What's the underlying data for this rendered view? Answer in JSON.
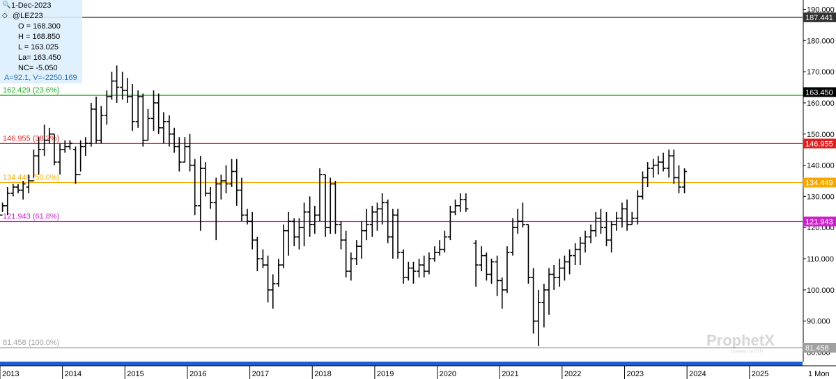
{
  "chart_data": {
    "type": "bar",
    "subtype": "ohlc-monthly",
    "instrument": "@LEZ23",
    "info_panel": {
      "date": "1-Dec-2023",
      "symbol": "@LEZ23",
      "open": "O = 168.300",
      "high": "H = 168.850",
      "low": "L = 163.025",
      "last": "La= 163.450",
      "net_change": "NC= -5.050",
      "extra": "A=92.1, V=-2250.169"
    },
    "y_axis": {
      "range": [
        77.0,
        193.0
      ],
      "ticks": [
        {
          "value": 190,
          "label": "190.000"
        },
        {
          "value": 180,
          "label": "180.000"
        },
        {
          "value": 170,
          "label": "170.000"
        },
        {
          "value": 160,
          "label": "160.000"
        },
        {
          "value": 150,
          "label": "150.000"
        },
        {
          "value": 140,
          "label": "140.000"
        },
        {
          "value": 130,
          "label": "130.000"
        },
        {
          "value": 120,
          "label": "120.000"
        },
        {
          "value": 110,
          "label": "110.000"
        },
        {
          "value": 100,
          "label": "100.000"
        },
        {
          "value": 90,
          "label": "90.000"
        },
        {
          "value": 80,
          "label": "80.000"
        }
      ]
    },
    "x_axis": {
      "range": [
        2013.0,
        2025.85
      ],
      "ticks": [
        {
          "value": 2013.0,
          "label": "2013"
        },
        {
          "value": 2014.0,
          "label": "2014"
        },
        {
          "value": 2015.0,
          "label": "2015"
        },
        {
          "value": 2016.0,
          "label": "2016"
        },
        {
          "value": 2017.0,
          "label": "2017"
        },
        {
          "value": 2018.0,
          "label": "2018"
        },
        {
          "value": 2019.0,
          "label": "2019"
        },
        {
          "value": 2020.0,
          "label": "2020"
        },
        {
          "value": 2021.0,
          "label": "2021"
        },
        {
          "value": 2022.0,
          "label": "2022"
        },
        {
          "value": 2023.0,
          "label": "2023"
        },
        {
          "value": 2024.0,
          "label": "2024"
        },
        {
          "value": 2025.0,
          "label": "2025"
        }
      ],
      "period_label": "1 Mon"
    },
    "levels": [
      {
        "value": 187.441,
        "left_label": "187.4",
        "right_label": "187.441",
        "color": "#333333",
        "label_color": "#a8a8a8",
        "badge_bg": "#333333",
        "badge_fg": "#ffffff"
      },
      {
        "value": 162.429,
        "left_label": "162.429 (23.6%)",
        "right_label": "",
        "color": "#1fae1f",
        "label_color": "#1fae1f",
        "badge_bg": "",
        "badge_fg": ""
      },
      {
        "value": 146.955,
        "left_label": "146.955 (38.2%)",
        "right_label": "146.955",
        "color": "#e02020",
        "label_color": "#e02020",
        "badge_bg": "#e02020",
        "badge_fg": "#ffffff"
      },
      {
        "value": 134.449,
        "left_label": "134.449 (50.0%)",
        "right_label": "134.449",
        "color": "#f5a800",
        "label_color": "#f5a800",
        "badge_bg": "#f5a800",
        "badge_fg": "#ffffff"
      },
      {
        "value": 121.943,
        "left_label": "121.943 (61.8%)",
        "right_label": "121.943",
        "color": "#cc22cc",
        "label_color": "#cc22cc",
        "badge_bg": "#cc22cc",
        "badge_fg": "#ffffff"
      },
      {
        "value": 81.458,
        "left_label": "81.458 (100.0%)",
        "right_label": "81.458",
        "color": "#a0a0a0",
        "label_color": "#a0a0a0",
        "badge_bg": "#a0a0a0",
        "badge_fg": "#ffffff"
      }
    ],
    "last_price": {
      "value": 163.45,
      "label": "163.450",
      "badge_bg": "#000000",
      "badge_fg": "#ffffff"
    },
    "watermark": {
      "brand": "ProphetX",
      "tagline": "powered by DTN"
    },
    "bars": [
      {
        "t": 2013.04,
        "o": 124,
        "h": 128,
        "l": 125,
        "c": 127
      },
      {
        "t": 2013.12,
        "o": 127,
        "h": 133,
        "l": 124,
        "c": 131
      },
      {
        "t": 2013.21,
        "o": 131,
        "h": 134,
        "l": 130,
        "c": 133
      },
      {
        "t": 2013.29,
        "o": 133,
        "h": 134,
        "l": 131,
        "c": 132
      },
      {
        "t": 2013.37,
        "o": 132,
        "h": 135,
        "l": 129,
        "c": 134
      },
      {
        "t": 2013.46,
        "o": 133,
        "h": 137,
        "l": 131,
        "c": 135
      },
      {
        "t": 2013.54,
        "o": 135,
        "h": 145,
        "l": 136,
        "c": 143
      },
      {
        "t": 2013.62,
        "o": 143,
        "h": 149,
        "l": 137,
        "c": 145
      },
      {
        "t": 2013.71,
        "o": 145,
        "h": 153,
        "l": 143,
        "c": 148
      },
      {
        "t": 2013.79,
        "o": 148,
        "h": 152,
        "l": 147,
        "c": 150
      },
      {
        "t": 2013.87,
        "o": 150,
        "h": 150,
        "l": 140,
        "c": 141
      },
      {
        "t": 2013.96,
        "o": 141,
        "h": 147,
        "l": 137,
        "c": 145
      },
      {
        "t": 2014.04,
        "o": 145,
        "h": 148,
        "l": 144,
        "c": 146
      },
      {
        "t": 2014.12,
        "o": 146,
        "h": 148,
        "l": 145,
        "c": 147
      },
      {
        "t": 2014.21,
        "o": 145,
        "h": 146,
        "l": 134,
        "c": 137
      },
      {
        "t": 2014.29,
        "o": 137,
        "h": 148,
        "l": 138,
        "c": 146
      },
      {
        "t": 2014.37,
        "o": 146,
        "h": 149,
        "l": 143,
        "c": 147
      },
      {
        "t": 2014.46,
        "o": 147,
        "h": 160,
        "l": 146,
        "c": 158
      },
      {
        "t": 2014.54,
        "o": 158,
        "h": 162,
        "l": 147,
        "c": 148
      },
      {
        "t": 2014.62,
        "o": 148,
        "h": 159,
        "l": 147,
        "c": 156
      },
      {
        "t": 2014.71,
        "o": 156,
        "h": 164,
        "l": 153,
        "c": 162
      },
      {
        "t": 2014.79,
        "o": 162,
        "h": 170,
        "l": 161,
        "c": 167
      },
      {
        "t": 2014.87,
        "o": 167,
        "h": 172,
        "l": 160,
        "c": 165
      },
      {
        "t": 2014.96,
        "o": 165,
        "h": 170,
        "l": 161,
        "c": 164
      },
      {
        "t": 2015.04,
        "o": 164,
        "h": 168,
        "l": 160,
        "c": 162
      },
      {
        "t": 2015.12,
        "o": 162,
        "h": 166,
        "l": 151,
        "c": 154
      },
      {
        "t": 2015.21,
        "o": 154,
        "h": 164,
        "l": 152,
        "c": 162
      },
      {
        "t": 2015.29,
        "o": 162,
        "h": 163,
        "l": 146,
        "c": 148
      },
      {
        "t": 2015.37,
        "o": 148,
        "h": 158,
        "l": 148,
        "c": 155
      },
      {
        "t": 2015.46,
        "o": 155,
        "h": 164,
        "l": 151,
        "c": 160
      },
      {
        "t": 2015.54,
        "o": 160,
        "h": 163,
        "l": 150,
        "c": 152
      },
      {
        "t": 2015.62,
        "o": 152,
        "h": 157,
        "l": 147,
        "c": 154
      },
      {
        "t": 2015.71,
        "o": 154,
        "h": 156,
        "l": 146,
        "c": 150
      },
      {
        "t": 2015.79,
        "o": 150,
        "h": 152,
        "l": 144,
        "c": 146
      },
      {
        "t": 2015.87,
        "o": 146,
        "h": 149,
        "l": 138,
        "c": 141
      },
      {
        "t": 2015.96,
        "o": 141,
        "h": 149,
        "l": 141,
        "c": 146
      },
      {
        "t": 2016.04,
        "o": 146,
        "h": 150,
        "l": 138,
        "c": 140
      },
      {
        "t": 2016.12,
        "o": 140,
        "h": 142,
        "l": 124,
        "c": 127
      },
      {
        "t": 2016.21,
        "o": 127,
        "h": 143,
        "l": 119,
        "c": 139
      },
      {
        "t": 2016.29,
        "o": 139,
        "h": 141,
        "l": 130,
        "c": 131
      },
      {
        "t": 2016.37,
        "o": 131,
        "h": 133,
        "l": 126,
        "c": 128
      },
      {
        "t": 2016.46,
        "o": 128,
        "h": 136,
        "l": 116,
        "c": 134
      },
      {
        "t": 2016.54,
        "o": 134,
        "h": 137,
        "l": 129,
        "c": 135
      },
      {
        "t": 2016.62,
        "o": 135,
        "h": 140,
        "l": 131,
        "c": 134
      },
      {
        "t": 2016.71,
        "o": 134,
        "h": 142,
        "l": 133,
        "c": 138
      },
      {
        "t": 2016.79,
        "o": 138,
        "h": 142,
        "l": 127,
        "c": 132
      },
      {
        "t": 2016.87,
        "o": 132,
        "h": 136,
        "l": 122,
        "c": 124
      },
      {
        "t": 2016.96,
        "o": 124,
        "h": 126,
        "l": 121,
        "c": 122
      },
      {
        "t": 2017.04,
        "o": 122,
        "h": 125,
        "l": 113,
        "c": 116
      },
      {
        "t": 2017.12,
        "o": 116,
        "h": 117,
        "l": 106,
        "c": 110
      },
      {
        "t": 2017.21,
        "o": 110,
        "h": 113,
        "l": 107,
        "c": 108
      },
      {
        "t": 2017.29,
        "o": 108,
        "h": 111,
        "l": 96,
        "c": 100
      },
      {
        "t": 2017.37,
        "o": 100,
        "h": 105,
        "l": 94,
        "c": 102
      },
      {
        "t": 2017.46,
        "o": 102,
        "h": 110,
        "l": 101,
        "c": 108
      },
      {
        "t": 2017.54,
        "o": 108,
        "h": 121,
        "l": 107,
        "c": 119
      },
      {
        "t": 2017.62,
        "o": 119,
        "h": 125,
        "l": 111,
        "c": 122
      },
      {
        "t": 2017.71,
        "o": 122,
        "h": 123,
        "l": 114,
        "c": 117
      },
      {
        "t": 2017.79,
        "o": 117,
        "h": 123,
        "l": 113,
        "c": 120
      },
      {
        "t": 2017.87,
        "o": 120,
        "h": 128,
        "l": 114,
        "c": 125
      },
      {
        "t": 2017.96,
        "o": 125,
        "h": 130,
        "l": 117,
        "c": 121
      },
      {
        "t": 2018.04,
        "o": 121,
        "h": 127,
        "l": 118,
        "c": 124
      },
      {
        "t": 2018.12,
        "o": 124,
        "h": 139,
        "l": 122,
        "c": 137
      },
      {
        "t": 2018.21,
        "o": 137,
        "h": 137,
        "l": 117,
        "c": 120
      },
      {
        "t": 2018.29,
        "o": 120,
        "h": 136,
        "l": 118,
        "c": 134
      },
      {
        "t": 2018.37,
        "o": 134,
        "h": 135,
        "l": 118,
        "c": 121
      },
      {
        "t": 2018.46,
        "o": 121,
        "h": 122,
        "l": 113,
        "c": 116
      },
      {
        "t": 2018.54,
        "o": 116,
        "h": 119,
        "l": 104,
        "c": 106
      },
      {
        "t": 2018.62,
        "o": 106,
        "h": 112,
        "l": 103,
        "c": 110
      },
      {
        "t": 2018.71,
        "o": 110,
        "h": 116,
        "l": 108,
        "c": 114
      },
      {
        "t": 2018.79,
        "o": 114,
        "h": 122,
        "l": 110,
        "c": 119
      },
      {
        "t": 2018.87,
        "o": 119,
        "h": 126,
        "l": 116,
        "c": 121
      },
      {
        "t": 2018.96,
        "o": 121,
        "h": 127,
        "l": 117,
        "c": 125
      },
      {
        "t": 2019.04,
        "o": 125,
        "h": 128,
        "l": 119,
        "c": 126
      },
      {
        "t": 2019.12,
        "o": 126,
        "h": 131,
        "l": 121,
        "c": 128
      },
      {
        "t": 2019.21,
        "o": 128,
        "h": 129,
        "l": 115,
        "c": 117
      },
      {
        "t": 2019.29,
        "o": 117,
        "h": 126,
        "l": 110,
        "c": 124
      },
      {
        "t": 2019.37,
        "o": 124,
        "h": 126,
        "l": 110,
        "c": 112
      },
      {
        "t": 2019.46,
        "o": 112,
        "h": 113,
        "l": 102,
        "c": 104
      },
      {
        "t": 2019.54,
        "o": 104,
        "h": 109,
        "l": 103,
        "c": 107
      },
      {
        "t": 2019.62,
        "o": 107,
        "h": 109,
        "l": 102,
        "c": 106
      },
      {
        "t": 2019.71,
        "o": 106,
        "h": 110,
        "l": 104,
        "c": 108
      },
      {
        "t": 2019.79,
        "o": 108,
        "h": 111,
        "l": 104,
        "c": 106
      },
      {
        "t": 2019.87,
        "o": 106,
        "h": 112,
        "l": 105,
        "c": 110
      },
      {
        "t": 2019.96,
        "o": 110,
        "h": 114,
        "l": 109,
        "c": 112
      },
      {
        "t": 2020.04,
        "o": 112,
        "h": 116,
        "l": 111,
        "c": 113
      },
      {
        "t": 2020.12,
        "o": 113,
        "h": 119,
        "l": 112,
        "c": 117
      },
      {
        "t": 2020.21,
        "o": 117,
        "h": 127,
        "l": 116,
        "c": 125
      },
      {
        "t": 2020.29,
        "o": 125,
        "h": 129,
        "l": 124,
        "c": 127
      },
      {
        "t": 2020.37,
        "o": 127,
        "h": 131,
        "l": 125,
        "c": 129
      },
      {
        "t": 2020.46,
        "o": 129,
        "h": 131,
        "l": 125,
        "c": 126
      },
      {
        "t": 2020.62,
        "o": 115,
        "h": 116,
        "l": 101,
        "c": 108
      },
      {
        "t": 2020.71,
        "o": 108,
        "h": 114,
        "l": 106,
        "c": 111
      },
      {
        "t": 2020.79,
        "o": 111,
        "h": 112,
        "l": 103,
        "c": 105
      },
      {
        "t": 2020.87,
        "o": 105,
        "h": 110,
        "l": 102,
        "c": 109
      },
      {
        "t": 2020.96,
        "o": 109,
        "h": 111,
        "l": 98,
        "c": 103
      },
      {
        "t": 2021.04,
        "o": 103,
        "h": 104,
        "l": 94,
        "c": 100
      },
      {
        "t": 2021.12,
        "o": 100,
        "h": 114,
        "l": 99,
        "c": 112
      },
      {
        "t": 2021.21,
        "o": 112,
        "h": 123,
        "l": 111,
        "c": 120
      },
      {
        "t": 2021.29,
        "o": 120,
        "h": 126,
        "l": 118,
        "c": 122
      },
      {
        "t": 2021.37,
        "o": 122,
        "h": 128,
        "l": 120,
        "c": 121
      },
      {
        "t": 2021.46,
        "o": 121,
        "h": 121,
        "l": 102,
        "c": 104
      },
      {
        "t": 2021.54,
        "o": 104,
        "h": 107,
        "l": 86,
        "c": 90
      },
      {
        "t": 2021.62,
        "o": 90,
        "h": 100,
        "l": 82,
        "c": 96
      },
      {
        "t": 2021.71,
        "o": 96,
        "h": 102,
        "l": 88,
        "c": 100
      },
      {
        "t": 2021.79,
        "o": 100,
        "h": 107,
        "l": 92,
        "c": 105
      },
      {
        "t": 2021.87,
        "o": 105,
        "h": 108,
        "l": 100,
        "c": 104
      },
      {
        "t": 2021.96,
        "o": 104,
        "h": 110,
        "l": 101,
        "c": 107
      },
      {
        "t": 2022.04,
        "o": 107,
        "h": 111,
        "l": 103,
        "c": 109
      },
      {
        "t": 2022.12,
        "o": 109,
        "h": 113,
        "l": 105,
        "c": 111
      },
      {
        "t": 2022.21,
        "o": 111,
        "h": 115,
        "l": 108,
        "c": 113
      },
      {
        "t": 2022.29,
        "o": 113,
        "h": 117,
        "l": 108,
        "c": 115
      },
      {
        "t": 2022.37,
        "o": 115,
        "h": 119,
        "l": 112,
        "c": 117
      },
      {
        "t": 2022.46,
        "o": 117,
        "h": 121,
        "l": 115,
        "c": 119
      },
      {
        "t": 2022.54,
        "o": 119,
        "h": 125,
        "l": 117,
        "c": 123
      },
      {
        "t": 2022.62,
        "o": 123,
        "h": 126,
        "l": 118,
        "c": 120
      },
      {
        "t": 2022.71,
        "o": 120,
        "h": 125,
        "l": 114,
        "c": 116
      },
      {
        "t": 2022.79,
        "o": 116,
        "h": 122,
        "l": 112,
        "c": 121
      },
      {
        "t": 2022.87,
        "o": 121,
        "h": 125,
        "l": 119,
        "c": 123
      },
      {
        "t": 2022.96,
        "o": 123,
        "h": 128,
        "l": 120,
        "c": 126
      },
      {
        "t": 2023.04,
        "o": 126,
        "h": 129,
        "l": 119,
        "c": 121
      },
      {
        "t": 2023.12,
        "o": 121,
        "h": 125,
        "l": 121,
        "c": 123
      },
      {
        "t": 2023.21,
        "o": 123,
        "h": 132,
        "l": 121,
        "c": 130
      },
      {
        "t": 2023.29,
        "o": 130,
        "h": 138,
        "l": 129,
        "c": 136
      },
      {
        "t": 2023.37,
        "o": 136,
        "h": 141,
        "l": 133,
        "c": 139
      },
      {
        "t": 2023.46,
        "o": 139,
        "h": 142,
        "l": 136,
        "c": 140
      },
      {
        "t": 2023.54,
        "o": 140,
        "h": 143,
        "l": 137,
        "c": 141
      },
      {
        "t": 2023.62,
        "o": 141,
        "h": 144,
        "l": 138,
        "c": 139
      },
      {
        "t": 2023.71,
        "o": 139,
        "h": 145,
        "l": 136,
        "c": 143
      },
      {
        "t": 2023.79,
        "o": 143,
        "h": 145,
        "l": 134,
        "c": 136
      },
      {
        "t": 2023.87,
        "o": 136,
        "h": 140,
        "l": 131,
        "c": 133
      },
      {
        "t": 2023.96,
        "o": 133,
        "h": 139,
        "l": 131,
        "c": 138
      }
    ]
  }
}
